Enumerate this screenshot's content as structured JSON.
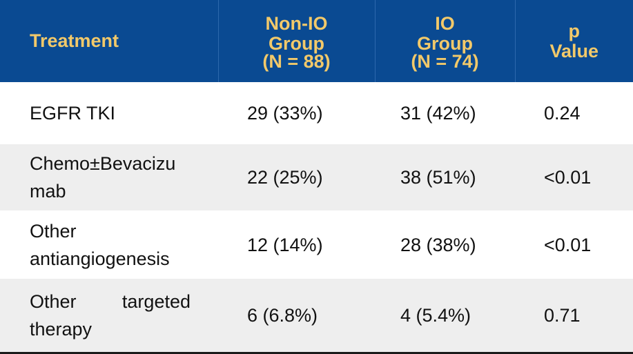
{
  "table": {
    "headers": {
      "treatment": "Treatment",
      "nonio": {
        "line1": "Non-IO",
        "line2": "Group",
        "line3": "(N = 88)"
      },
      "io": {
        "line1": "IO",
        "line2": "Group",
        "line3": "(N = 74)"
      },
      "p": {
        "line1": "p",
        "line2": "Value"
      }
    },
    "rows": [
      {
        "treatment_line1": "EGFR TKI",
        "treatment_line2": "",
        "nonio": "29 (33%)",
        "io": "31 (42%)",
        "p": "0.24"
      },
      {
        "treatment_line1": "Chemo±Bevacizu",
        "treatment_line2": "mab",
        "nonio": "22 (25%)",
        "io": "38 (51%)",
        "p": "<0.01"
      },
      {
        "treatment_line1": "Other",
        "treatment_line2": "antiangiogenesis",
        "nonio": "12 (14%)",
        "io": "28 (38%)",
        "p": "<0.01"
      },
      {
        "treatment_line1": "Other targeted",
        "treatment_line2": "therapy",
        "nonio": "6 (6.8%)",
        "io": "4 (5.4%)",
        "p": "0.71"
      }
    ]
  },
  "colors": {
    "header_bg": "#0a4a92",
    "header_text": "#f2c96a",
    "stripe_bg": "#eeeeee"
  }
}
